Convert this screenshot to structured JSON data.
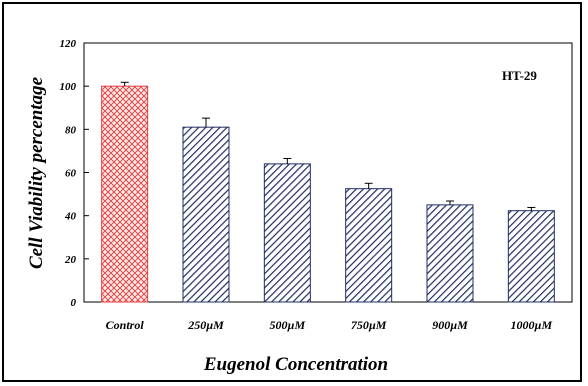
{
  "chart_data": {
    "type": "bar",
    "title": "",
    "annotation": "HT-29",
    "xlabel": "Eugenol Concentration",
    "ylabel": "Cell Viability percentage",
    "categories": [
      "Control",
      "250µM",
      "500µM",
      "750µM",
      "900µM",
      "1000µM"
    ],
    "values": [
      100,
      81,
      64,
      52.5,
      45,
      42.3
    ],
    "errors": [
      1.8,
      4.2,
      2.5,
      2.5,
      1.8,
      1.5
    ],
    "ylim": [
      0,
      120
    ],
    "yticks": [
      0,
      20,
      40,
      60,
      80,
      100,
      120
    ],
    "grid": false,
    "legend": "none",
    "colors": {
      "control_fill": "#e23b3b",
      "treatment_fill": "#1f2d63",
      "axis": "#000000"
    }
  }
}
